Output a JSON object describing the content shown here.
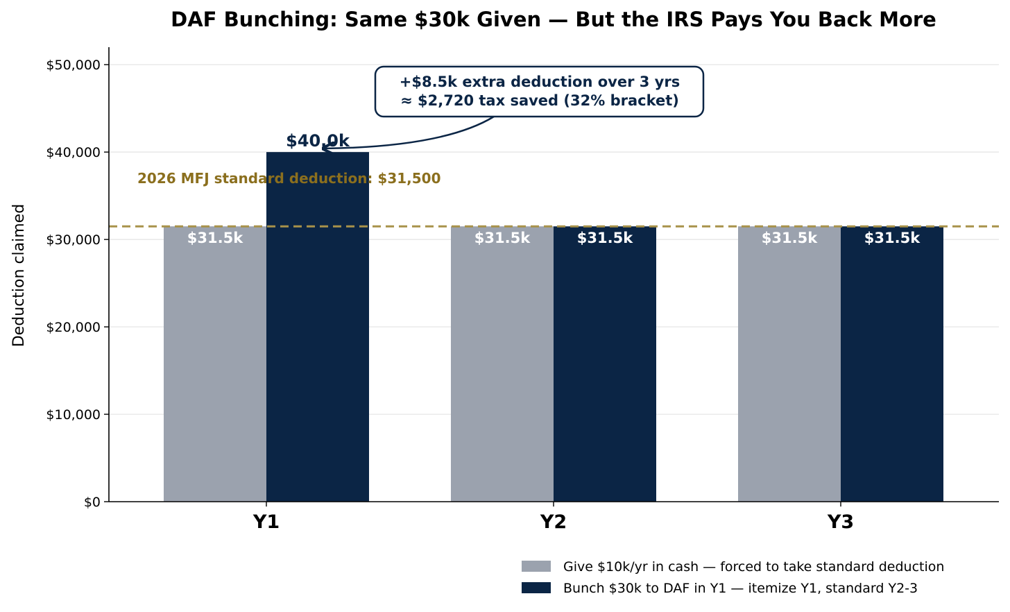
{
  "chart_data": {
    "type": "bar",
    "title": "DAF Bunching: Same $30k Given — But the IRS Pays You Back More",
    "xlabel": "",
    "ylabel": "Deduction claimed",
    "categories": [
      "Y1",
      "Y2",
      "Y3"
    ],
    "ylim": [
      0,
      52000
    ],
    "yticks": [
      0,
      10000,
      20000,
      30000,
      40000,
      50000
    ],
    "ytick_labels": [
      "$0",
      "$10,000",
      "$20,000",
      "$30,000",
      "$40,000",
      "$50,000"
    ],
    "grid": "horizontal",
    "series": [
      {
        "name": "Give $10k/yr in cash — forced to take standard deduction",
        "color": "#9ba2ae",
        "values": [
          31500,
          31500,
          31500
        ],
        "labels": [
          "$31.5k",
          "$31.5k",
          "$31.5k"
        ]
      },
      {
        "name": "Bunch $30k to DAF in Y1 — itemize Y1, standard Y2-3",
        "color": "#0b2545",
        "values": [
          40000,
          31500,
          31500
        ],
        "labels": [
          "$40.0k",
          "$31.5k",
          "$31.5k"
        ]
      }
    ],
    "reference_line": {
      "value": 31500,
      "label": "2026 MFJ standard deduction: $31,500",
      "color": "#a8924a",
      "style": "dashed"
    },
    "annotation": {
      "lines": [
        "+$8.5k extra deduction over 3 yrs",
        "≈ $2,720 tax saved (32% bracket)"
      ],
      "target_series": 1,
      "target_category": "Y1"
    },
    "legend_position": "bottom-right"
  }
}
